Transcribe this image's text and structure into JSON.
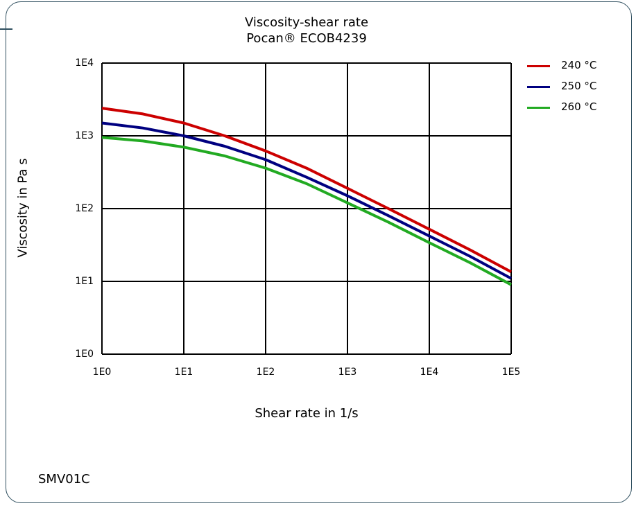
{
  "figure_code": "SMV01C",
  "colors": {
    "frame": "#2f4f5f",
    "grid": "#000000"
  },
  "chart_data": {
    "type": "line",
    "title": "Viscosity-shear rate",
    "subtitle": "Pocan® ECOB4239",
    "xlabel": "Shear rate in 1/s",
    "ylabel": "Viscosity in Pa s",
    "x_scale": "log",
    "y_scale": "log",
    "xlim": [
      1,
      100000
    ],
    "ylim": [
      1,
      10000
    ],
    "x_ticks": [
      {
        "value": 1,
        "label": "1E0"
      },
      {
        "value": 10,
        "label": "1E1"
      },
      {
        "value": 100,
        "label": "1E2"
      },
      {
        "value": 1000,
        "label": "1E3"
      },
      {
        "value": 10000,
        "label": "1E4"
      },
      {
        "value": 100000,
        "label": "1E5"
      }
    ],
    "y_ticks": [
      {
        "value": 1,
        "label": "1E0"
      },
      {
        "value": 10,
        "label": "1E1"
      },
      {
        "value": 100,
        "label": "1E2"
      },
      {
        "value": 1000,
        "label": "1E3"
      },
      {
        "value": 10000,
        "label": "1E4"
      }
    ],
    "grid": true,
    "legend_position": "right",
    "series": [
      {
        "name": "240 °C",
        "color": "#cc0000",
        "x": [
          1,
          3.16,
          10,
          31.6,
          100,
          316,
          1000,
          3160,
          10000,
          31600,
          100000
        ],
        "y": [
          2400,
          2000,
          1500,
          1000,
          620,
          360,
          190,
          100,
          52,
          27,
          13.5
        ]
      },
      {
        "name": "250 °C",
        "color": "#000080",
        "x": [
          1,
          3.16,
          10,
          31.6,
          100,
          316,
          1000,
          3160,
          10000,
          31600,
          100000
        ],
        "y": [
          1500,
          1280,
          1000,
          720,
          470,
          270,
          150,
          80,
          42,
          22,
          11
        ]
      },
      {
        "name": "260 °C",
        "color": "#22aa22",
        "x": [
          1,
          3.16,
          10,
          31.6,
          100,
          316,
          1000,
          3160,
          10000,
          31600,
          100000
        ],
        "y": [
          950,
          850,
          700,
          530,
          360,
          220,
          120,
          65,
          34,
          18,
          9
        ]
      }
    ]
  }
}
